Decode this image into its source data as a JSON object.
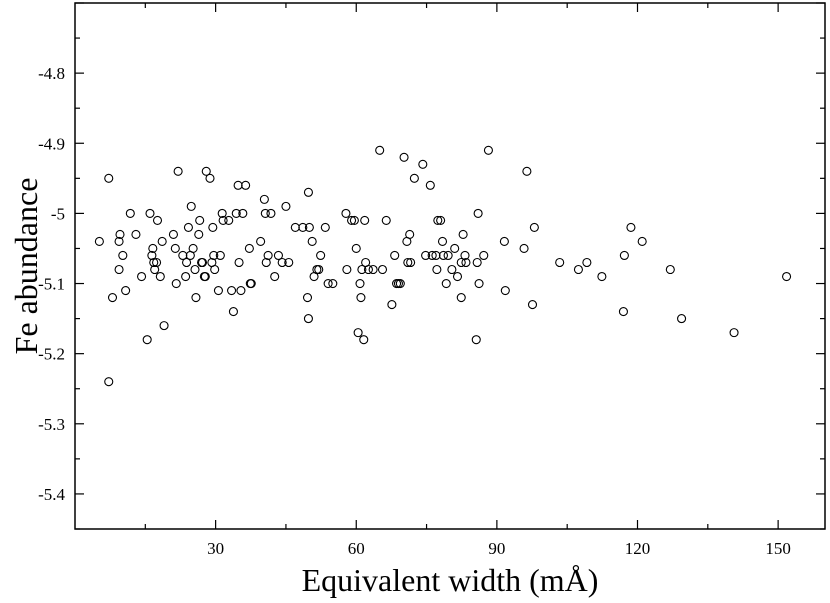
{
  "chart_data": {
    "type": "scatter",
    "title": "",
    "xlabel": "Equivalent width (mÅ)",
    "ylabel": "Fe abundance",
    "xlim": [
      0,
      160
    ],
    "ylim": [
      -5.45,
      -4.7
    ],
    "xticks": [
      30,
      60,
      90,
      120,
      150
    ],
    "yticks": [
      -5.4,
      -5.3,
      -5.2,
      -5.1,
      -5.0,
      -4.9,
      -4.8
    ],
    "ytick_labels": [
      "-5.4",
      "-5.3",
      "-5.2",
      "-5.1",
      "-5",
      "-4.9",
      "-4.8"
    ],
    "grid": false,
    "marker": "open-circle",
    "series": [
      {
        "name": "",
        "points": [
          [
            5.2,
            -5.04
          ],
          [
            7.2,
            -4.95
          ],
          [
            7.2,
            -5.24
          ],
          [
            8.0,
            -5.12
          ],
          [
            9.4,
            -5.04
          ],
          [
            9.4,
            -5.08
          ],
          [
            9.6,
            -5.03
          ],
          [
            10.2,
            -5.06
          ],
          [
            10.8,
            -5.11
          ],
          [
            11.8,
            -5.0
          ],
          [
            13.0,
            -5.03
          ],
          [
            14.2,
            -5.09
          ],
          [
            15.4,
            -5.18
          ],
          [
            16.0,
            -5.0
          ],
          [
            16.4,
            -5.06
          ],
          [
            16.6,
            -5.05
          ],
          [
            16.8,
            -5.07
          ],
          [
            17.0,
            -5.08
          ],
          [
            17.4,
            -5.07
          ],
          [
            17.6,
            -5.01
          ],
          [
            18.2,
            -5.09
          ],
          [
            18.6,
            -5.04
          ],
          [
            19.0,
            -5.16
          ],
          [
            21.0,
            -5.03
          ],
          [
            21.4,
            -5.05
          ],
          [
            21.6,
            -5.1
          ],
          [
            22.0,
            -4.94
          ],
          [
            23.0,
            -5.06
          ],
          [
            23.6,
            -5.09
          ],
          [
            23.8,
            -5.07
          ],
          [
            24.2,
            -5.02
          ],
          [
            24.6,
            -5.06
          ],
          [
            24.8,
            -4.99
          ],
          [
            25.2,
            -5.05
          ],
          [
            25.6,
            -5.08
          ],
          [
            25.8,
            -5.12
          ],
          [
            26.4,
            -5.03
          ],
          [
            26.6,
            -5.01
          ],
          [
            27.0,
            -5.07
          ],
          [
            27.2,
            -5.07
          ],
          [
            27.6,
            -5.09
          ],
          [
            27.8,
            -5.09
          ],
          [
            28.0,
            -4.94
          ],
          [
            28.8,
            -4.95
          ],
          [
            29.2,
            -5.07
          ],
          [
            29.4,
            -5.02
          ],
          [
            29.6,
            -5.06
          ],
          [
            29.8,
            -5.08
          ],
          [
            30.6,
            -5.11
          ],
          [
            31.0,
            -5.06
          ],
          [
            31.4,
            -5.0
          ],
          [
            31.6,
            -5.01
          ],
          [
            32.8,
            -5.01
          ],
          [
            33.4,
            -5.11
          ],
          [
            33.8,
            -5.14
          ],
          [
            34.4,
            -5.0
          ],
          [
            34.8,
            -4.96
          ],
          [
            35.0,
            -5.07
          ],
          [
            35.4,
            -5.11
          ],
          [
            35.8,
            -5.0
          ],
          [
            36.4,
            -4.96
          ],
          [
            37.2,
            -5.05
          ],
          [
            37.4,
            -5.1
          ],
          [
            37.6,
            -5.1
          ],
          [
            39.6,
            -5.04
          ],
          [
            40.4,
            -4.98
          ],
          [
            40.6,
            -5.0
          ],
          [
            40.8,
            -5.07
          ],
          [
            41.2,
            -5.06
          ],
          [
            41.8,
            -5.0
          ],
          [
            42.6,
            -5.09
          ],
          [
            43.4,
            -5.06
          ],
          [
            44.2,
            -5.07
          ],
          [
            45.0,
            -4.99
          ],
          [
            45.6,
            -5.07
          ],
          [
            47.0,
            -5.02
          ],
          [
            48.6,
            -5.02
          ],
          [
            49.6,
            -5.12
          ],
          [
            49.8,
            -4.97
          ],
          [
            49.8,
            -5.15
          ],
          [
            50.0,
            -5.02
          ],
          [
            50.6,
            -5.04
          ],
          [
            51.0,
            -5.09
          ],
          [
            51.6,
            -5.08
          ],
          [
            52.0,
            -5.08
          ],
          [
            52.4,
            -5.06
          ],
          [
            53.4,
            -5.02
          ],
          [
            54.0,
            -5.1
          ],
          [
            55.0,
            -5.1
          ],
          [
            57.8,
            -5.0
          ],
          [
            58.0,
            -5.08
          ],
          [
            59.0,
            -5.01
          ],
          [
            59.6,
            -5.01
          ],
          [
            60.0,
            -5.05
          ],
          [
            60.4,
            -5.17
          ],
          [
            60.8,
            -5.1
          ],
          [
            61.0,
            -5.12
          ],
          [
            61.2,
            -5.08
          ],
          [
            61.6,
            -5.18
          ],
          [
            61.8,
            -5.01
          ],
          [
            62.0,
            -5.07
          ],
          [
            62.6,
            -5.08
          ],
          [
            63.6,
            -5.08
          ],
          [
            65.0,
            -4.91
          ],
          [
            65.6,
            -5.08
          ],
          [
            66.4,
            -5.01
          ],
          [
            67.6,
            -5.13
          ],
          [
            68.2,
            -5.06
          ],
          [
            68.6,
            -5.1
          ],
          [
            69.0,
            -5.1
          ],
          [
            69.4,
            -5.1
          ],
          [
            70.2,
            -4.92
          ],
          [
            70.8,
            -5.04
          ],
          [
            71.0,
            -5.07
          ],
          [
            71.4,
            -5.03
          ],
          [
            71.6,
            -5.07
          ],
          [
            72.4,
            -4.95
          ],
          [
            74.2,
            -4.93
          ],
          [
            74.8,
            -5.06
          ],
          [
            75.8,
            -4.96
          ],
          [
            76.2,
            -5.06
          ],
          [
            77.0,
            -5.06
          ],
          [
            77.2,
            -5.08
          ],
          [
            77.4,
            -5.01
          ],
          [
            78.0,
            -5.01
          ],
          [
            78.4,
            -5.04
          ],
          [
            78.6,
            -5.06
          ],
          [
            79.2,
            -5.1
          ],
          [
            79.6,
            -5.06
          ],
          [
            80.4,
            -5.08
          ],
          [
            81.0,
            -5.05
          ],
          [
            81.6,
            -5.09
          ],
          [
            82.4,
            -5.07
          ],
          [
            82.4,
            -5.12
          ],
          [
            82.8,
            -5.03
          ],
          [
            83.2,
            -5.06
          ],
          [
            83.4,
            -5.07
          ],
          [
            85.6,
            -5.18
          ],
          [
            85.8,
            -5.07
          ],
          [
            86.0,
            -5.0
          ],
          [
            86.2,
            -5.1
          ],
          [
            87.2,
            -5.06
          ],
          [
            88.2,
            -4.91
          ],
          [
            91.6,
            -5.04
          ],
          [
            91.8,
            -5.11
          ],
          [
            95.8,
            -5.05
          ],
          [
            96.4,
            -4.94
          ],
          [
            97.6,
            -5.13
          ],
          [
            98.0,
            -5.02
          ],
          [
            103.4,
            -5.07
          ],
          [
            107.4,
            -5.08
          ],
          [
            109.2,
            -5.07
          ],
          [
            112.4,
            -5.09
          ],
          [
            117.0,
            -5.14
          ],
          [
            117.2,
            -5.06
          ],
          [
            118.6,
            -5.02
          ],
          [
            121.0,
            -5.04
          ],
          [
            127.0,
            -5.08
          ],
          [
            129.4,
            -5.15
          ],
          [
            140.6,
            -5.17
          ],
          [
            151.8,
            -5.09
          ]
        ]
      }
    ]
  }
}
